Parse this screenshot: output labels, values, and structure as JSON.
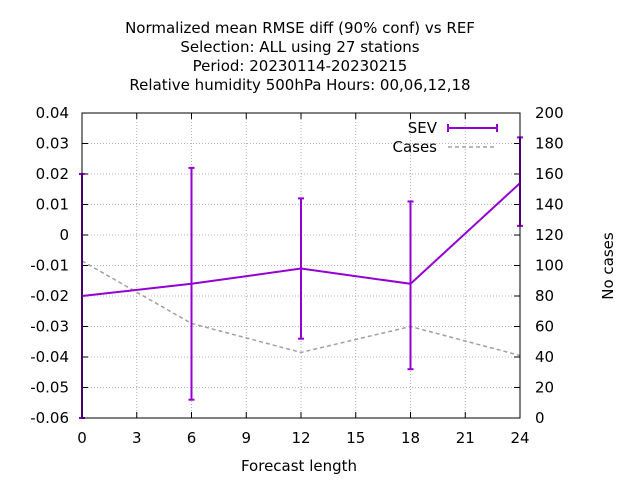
{
  "chart_data": {
    "type": "line",
    "title_lines": [
      "Normalized mean RMSE diff (90% conf) vs REF",
      "Selection: ALL using    27 stations",
      "Period: 20230114-20230215",
      "Relative humidity 500hPa   Hours:  00,06,12,18"
    ],
    "xlabel": "Forecast length",
    "y2label": "No cases",
    "xlim": [
      0,
      24
    ],
    "ylim": [
      -0.06,
      0.04
    ],
    "y2lim": [
      0,
      200
    ],
    "x_ticks": [
      "0",
      "3",
      "6",
      "9",
      "12",
      "15",
      "18",
      "21",
      "24"
    ],
    "y_ticks": [
      "0.04",
      "0.03",
      "0.02",
      "0.01",
      "0",
      "-0.01",
      "-0.02",
      "-0.03",
      "-0.04",
      "-0.05",
      "-0.06"
    ],
    "y2_ticks": [
      "200",
      "180",
      "160",
      "140",
      "120",
      "100",
      "80",
      "60",
      "40",
      "20",
      "0"
    ],
    "grid": true,
    "legend_position": "top-right",
    "series": [
      {
        "name": "SEV",
        "color": "#9400d3",
        "axis": "left",
        "style": "line-errorbars",
        "x": [
          0,
          6,
          12,
          18,
          24
        ],
        "y": [
          -0.02,
          -0.016,
          -0.011,
          -0.016,
          0.017
        ],
        "err_low": [
          -0.06,
          -0.054,
          -0.034,
          -0.044,
          0.003
        ],
        "err_high": [
          0.02,
          0.022,
          0.012,
          0.011,
          0.032
        ]
      },
      {
        "name": "Cases",
        "color": "#a0a0a0",
        "axis": "right",
        "style": "dashed",
        "x": [
          0,
          6,
          12,
          18,
          24
        ],
        "y": [
          103,
          62,
          43,
          60,
          41
        ]
      }
    ]
  }
}
